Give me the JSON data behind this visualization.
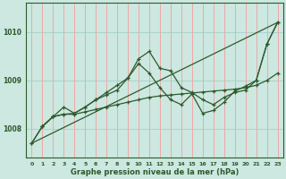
{
  "title": "Graphe pression niveau de la mer (hPa)",
  "bg_color": "#cce8e0",
  "grid_color_h": "#a8d4cc",
  "grid_color_v": "#f0a8a8",
  "line_color": "#2d5a2d",
  "xlim": [
    -0.5,
    23.5
  ],
  "ylim": [
    1007.4,
    1010.6
  ],
  "yticks": [
    1008,
    1009,
    1010
  ],
  "xticks": [
    0,
    1,
    2,
    3,
    4,
    5,
    6,
    7,
    8,
    9,
    10,
    11,
    12,
    13,
    14,
    15,
    16,
    17,
    18,
    19,
    20,
    21,
    22,
    23
  ],
  "series": [
    {
      "x": [
        0,
        1,
        2,
        3,
        4,
        5,
        6,
        7,
        8,
        9,
        10,
        11,
        12,
        13,
        14,
        15,
        16,
        17,
        18,
        19,
        20,
        21,
        22,
        23
      ],
      "y": [
        1007.7,
        1008.05,
        1008.25,
        1008.3,
        1008.3,
        1008.35,
        1008.4,
        1008.45,
        1008.5,
        1008.55,
        1008.6,
        1008.65,
        1008.68,
        1008.7,
        1008.72,
        1008.74,
        1008.76,
        1008.78,
        1008.8,
        1008.82,
        1008.85,
        1008.9,
        1009.0,
        1009.15
      ]
    },
    {
      "x": [
        0,
        23
      ],
      "y": [
        1007.7,
        1010.2
      ]
    },
    {
      "x": [
        0,
        1,
        2,
        3,
        4,
        5,
        6,
        7,
        8,
        9,
        10,
        11,
        12,
        13,
        14,
        15,
        16,
        17,
        18,
        19,
        20,
        21,
        22,
        23
      ],
      "y": [
        1007.7,
        1008.05,
        1008.25,
        1008.3,
        1008.32,
        1008.45,
        1008.6,
        1008.75,
        1008.9,
        1009.05,
        1009.45,
        1009.6,
        1009.25,
        1009.2,
        1008.85,
        1008.75,
        1008.6,
        1008.5,
        1008.65,
        1008.75,
        1008.8,
        1009.0,
        1009.75,
        1010.2
      ]
    },
    {
      "x": [
        1,
        2,
        3,
        4,
        5,
        6,
        7,
        8,
        9,
        10,
        11,
        12,
        13,
        14,
        15,
        16,
        17,
        18,
        19,
        20,
        21,
        22,
        23
      ],
      "y": [
        1008.05,
        1008.25,
        1008.45,
        1008.32,
        1008.45,
        1008.6,
        1008.7,
        1008.8,
        1009.05,
        1009.35,
        1009.15,
        1008.85,
        1008.6,
        1008.5,
        1008.72,
        1008.32,
        1008.38,
        1008.55,
        1008.78,
        1008.88,
        1009.0,
        1009.75,
        1010.2
      ]
    }
  ]
}
